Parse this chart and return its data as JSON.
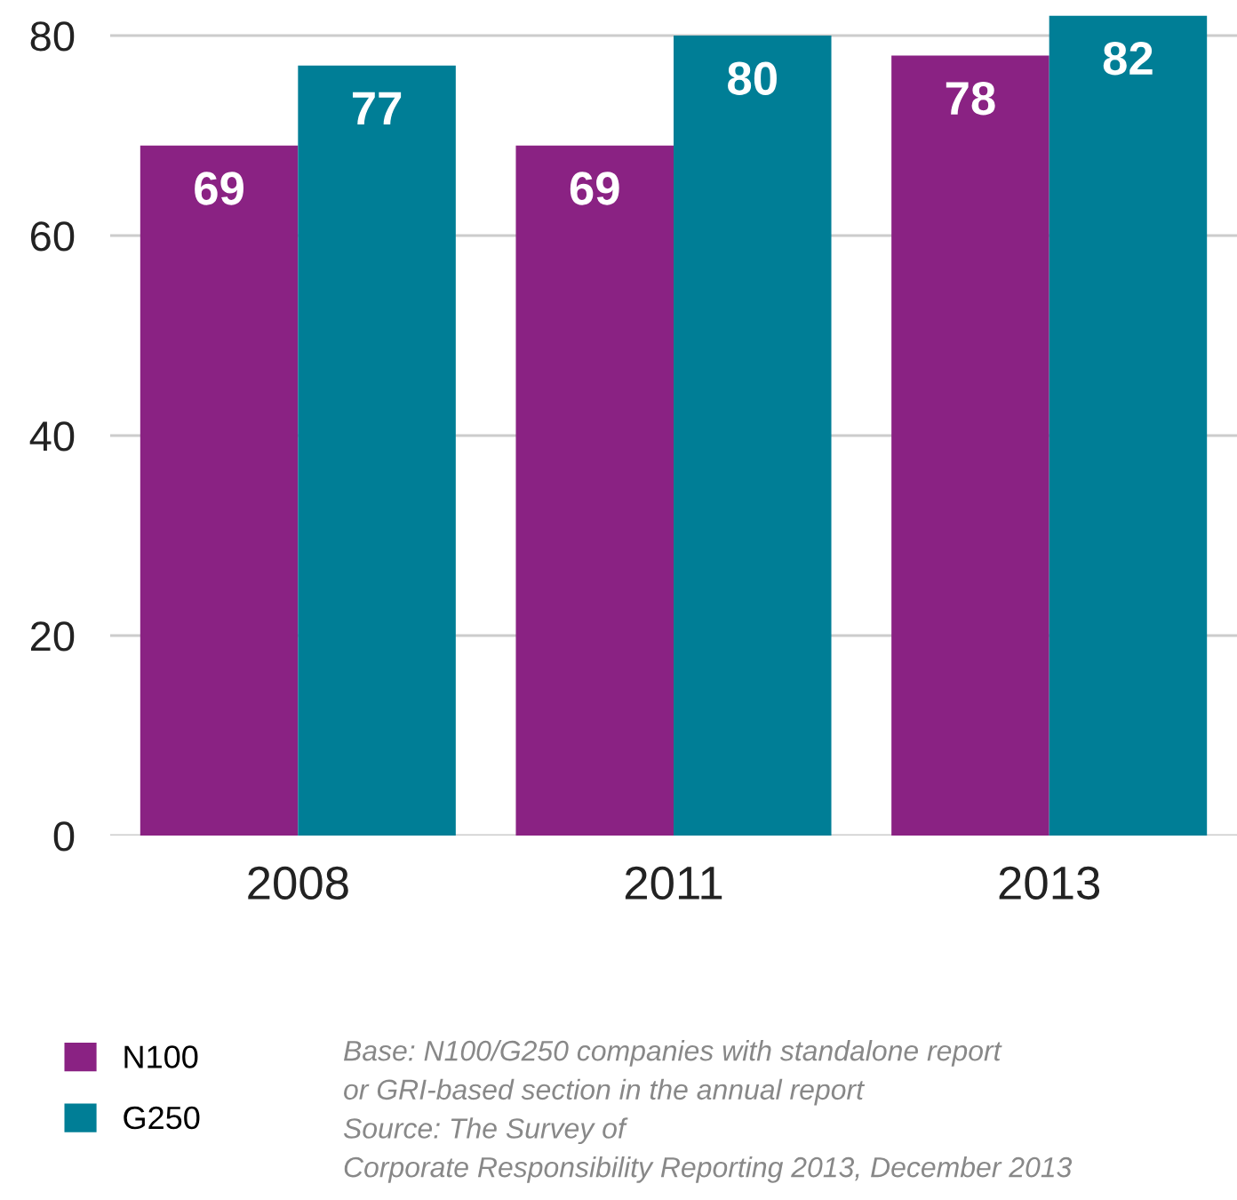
{
  "chart_data": {
    "type": "bar",
    "categories": [
      "2008",
      "2011",
      "2013"
    ],
    "series": [
      {
        "name": "N100",
        "color": "#8a2283",
        "values": [
          69,
          69,
          78
        ]
      },
      {
        "name": "G250",
        "color": "#007e96",
        "values": [
          77,
          80,
          82
        ]
      }
    ],
    "ylim": [
      0,
      82
    ],
    "yticks": [
      0,
      20,
      40,
      60,
      80
    ],
    "grid": "y",
    "legend": "bottom left",
    "data_labels": true,
    "annotations": [
      "Base: N100/G250 companies with standalone report\nor GRI-based section in the annual report\nSource: The Survey of\nCorporate Responsibility Reporting 2013, December 2013"
    ]
  }
}
